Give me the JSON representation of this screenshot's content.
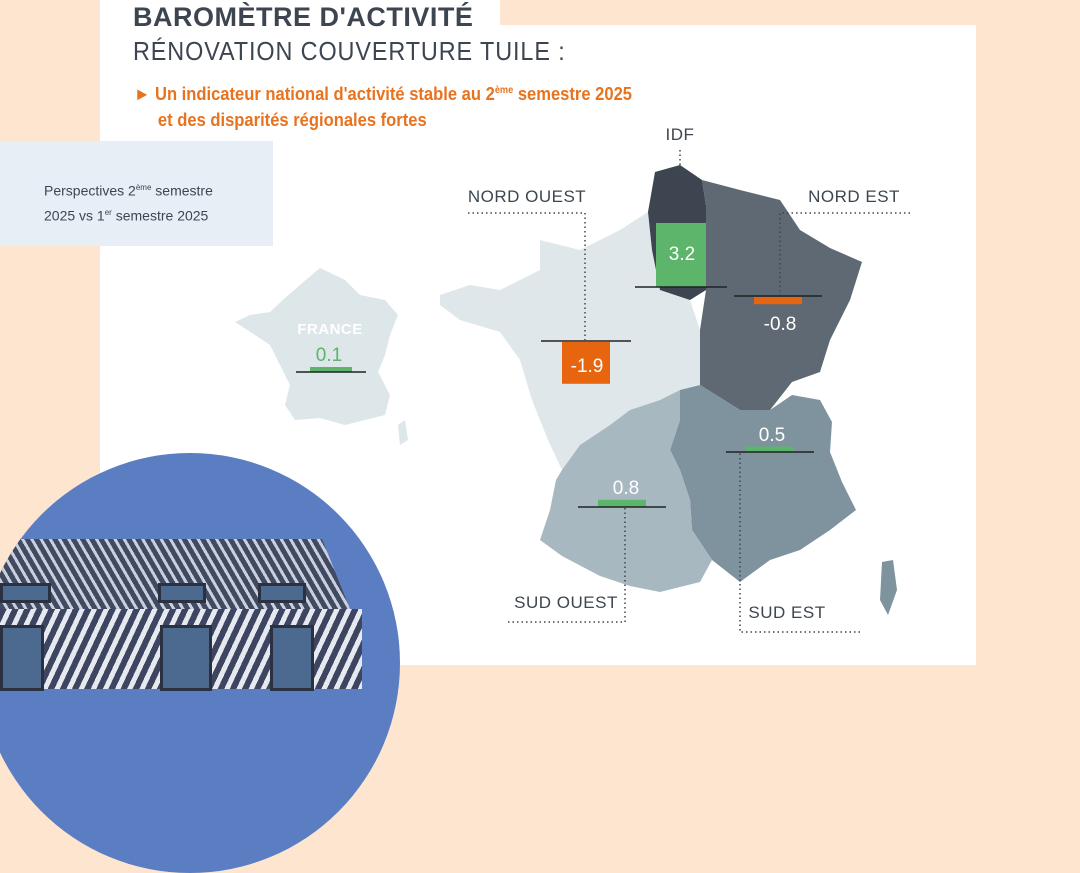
{
  "header": {
    "title": "BAROMÈTRE D'ACTIVITÉ",
    "subtitle": "RÉNOVATION COUVERTURE TUILE :",
    "headline_line1_a": "► Un indicateur national d'activité stable au 2",
    "headline_line1_sup": "ème",
    "headline_line1_b": " semestre 2025",
    "headline_line2": "et des disparités régionales fortes"
  },
  "note": {
    "line1_a": "Perspectives 2",
    "line1_sup": "ème",
    "line1_b": " semestre",
    "line2_a": "2025 vs 1",
    "line2_sup": "er",
    "line2_b": " semestre 2025"
  },
  "colors": {
    "positive": "#5cb56b",
    "negative": "#e8650f",
    "accent": "#e8731f",
    "text": "#3d4650"
  },
  "regions": [
    {
      "name": "FRANCE",
      "value": "0.1",
      "sign": "positive",
      "color": "#dde6e9"
    },
    {
      "name": "IDF",
      "value": "3.2",
      "sign": "positive",
      "color": "#3d4650"
    },
    {
      "name": "NORD OUEST",
      "value": "-1.9",
      "sign": "negative",
      "color": "#dfe7ea"
    },
    {
      "name": "NORD EST",
      "value": "-0.8",
      "sign": "negative",
      "color": "#5e6973"
    },
    {
      "name": "SUD OUEST",
      "value": "0.8",
      "sign": "positive",
      "color": "#a7b8c1"
    },
    {
      "name": "SUD EST",
      "value": "0.5",
      "sign": "positive",
      "color": "#7f939f"
    }
  ]
}
